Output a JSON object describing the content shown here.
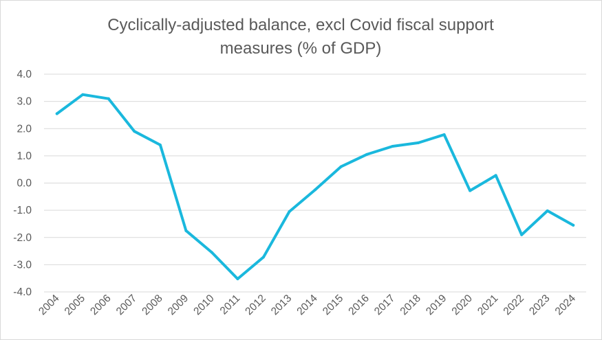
{
  "chart_data": {
    "type": "line",
    "title_lines": [
      "Cyclically-adjusted balance, excl Covid fiscal support",
      "measures (% of GDP)"
    ],
    "xlabel": "",
    "ylabel": "",
    "ylim": [
      -4.0,
      4.0
    ],
    "y_ticks": [
      "4.0",
      "3.0",
      "2.0",
      "1.0",
      "0.0",
      "-1.0",
      "-2.0",
      "-3.0",
      "-4.0"
    ],
    "grid": true,
    "legend": "none",
    "line_color": "#1ab8dd",
    "x": [
      "2004",
      "2005",
      "2006",
      "2007",
      "2008",
      "2009",
      "2010",
      "2011",
      "2012",
      "2013",
      "2014",
      "2015",
      "2016",
      "2017",
      "2018",
      "2019",
      "2020",
      "2021",
      "2022",
      "2023",
      "2024"
    ],
    "series": [
      {
        "name": "Cyclically-adjusted balance",
        "values": [
          2.55,
          3.25,
          3.1,
          1.9,
          1.4,
          -1.75,
          -2.55,
          -3.52,
          -2.72,
          -1.05,
          -0.25,
          0.6,
          1.05,
          1.35,
          1.48,
          1.78,
          -0.28,
          0.28,
          -1.9,
          -1.02,
          -1.55
        ]
      }
    ]
  }
}
